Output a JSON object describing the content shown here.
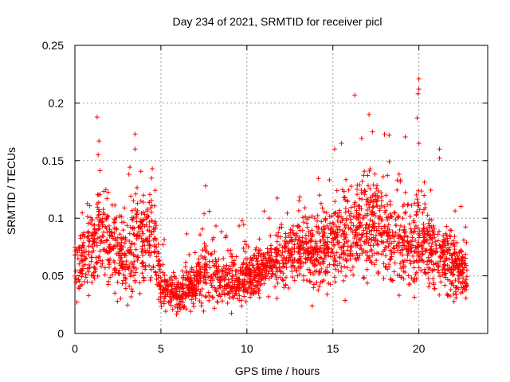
{
  "chart_data": {
    "type": "scatter",
    "title": "Day 234 of 2021, SRMTID for receiver picl",
    "xlabel": "GPS time / hours",
    "ylabel": "SRMTID / TECUs",
    "xlim": [
      0,
      24
    ],
    "ylim": [
      0,
      0.25
    ],
    "xticks": [
      0,
      5,
      10,
      15,
      20
    ],
    "xtick_labels": [
      "0",
      "5",
      "10",
      "15",
      "20"
    ],
    "yticks": [
      0,
      0.05,
      0.1,
      0.15,
      0.2,
      0.25
    ],
    "ytick_labels": [
      "0",
      "0.05",
      "0.1",
      "0.15",
      "0.2",
      "0.25"
    ],
    "grid": true,
    "marker": "+",
    "series_color": "#ff0000",
    "data_range_x": [
      0,
      22.8
    ],
    "envelope": {
      "hours": [
        0,
        1,
        1.5,
        2,
        3,
        3.5,
        4.5,
        5,
        6,
        7,
        7.5,
        8,
        9,
        10,
        11,
        12,
        13,
        14,
        15,
        16,
        17,
        18,
        19,
        20,
        21,
        22,
        22.8
      ],
      "center": [
        0.06,
        0.07,
        0.09,
        0.085,
        0.06,
        0.08,
        0.09,
        0.04,
        0.035,
        0.04,
        0.06,
        0.05,
        0.045,
        0.05,
        0.055,
        0.065,
        0.07,
        0.07,
        0.08,
        0.09,
        0.095,
        0.085,
        0.075,
        0.08,
        0.07,
        0.06,
        0.05
      ],
      "spread": [
        0.025,
        0.03,
        0.04,
        0.035,
        0.025,
        0.04,
        0.035,
        0.015,
        0.015,
        0.015,
        0.03,
        0.02,
        0.02,
        0.02,
        0.02,
        0.025,
        0.025,
        0.025,
        0.035,
        0.035,
        0.04,
        0.035,
        0.03,
        0.035,
        0.03,
        0.025,
        0.02
      ]
    },
    "n_points": 2600,
    "highlights": [
      {
        "x": 1.4,
        "y": 0.167
      },
      {
        "x": 1.35,
        "y": 0.155
      },
      {
        "x": 3.5,
        "y": 0.173
      },
      {
        "x": 3.5,
        "y": 0.16
      },
      {
        "x": 4.5,
        "y": 0.143
      },
      {
        "x": 7.6,
        "y": 0.128
      },
      {
        "x": 11.3,
        "y": 0.1
      },
      {
        "x": 15.5,
        "y": 0.165
      },
      {
        "x": 15.1,
        "y": 0.16
      },
      {
        "x": 17.1,
        "y": 0.19
      },
      {
        "x": 17.3,
        "y": 0.175
      },
      {
        "x": 19.9,
        "y": 0.187
      },
      {
        "x": 20.0,
        "y": 0.221
      },
      {
        "x": 20.0,
        "y": 0.212
      },
      {
        "x": 19.95,
        "y": 0.208
      },
      {
        "x": 20.0,
        "y": 0.165
      },
      {
        "x": 21.2,
        "y": 0.16
      },
      {
        "x": 21.2,
        "y": 0.152
      }
    ]
  }
}
